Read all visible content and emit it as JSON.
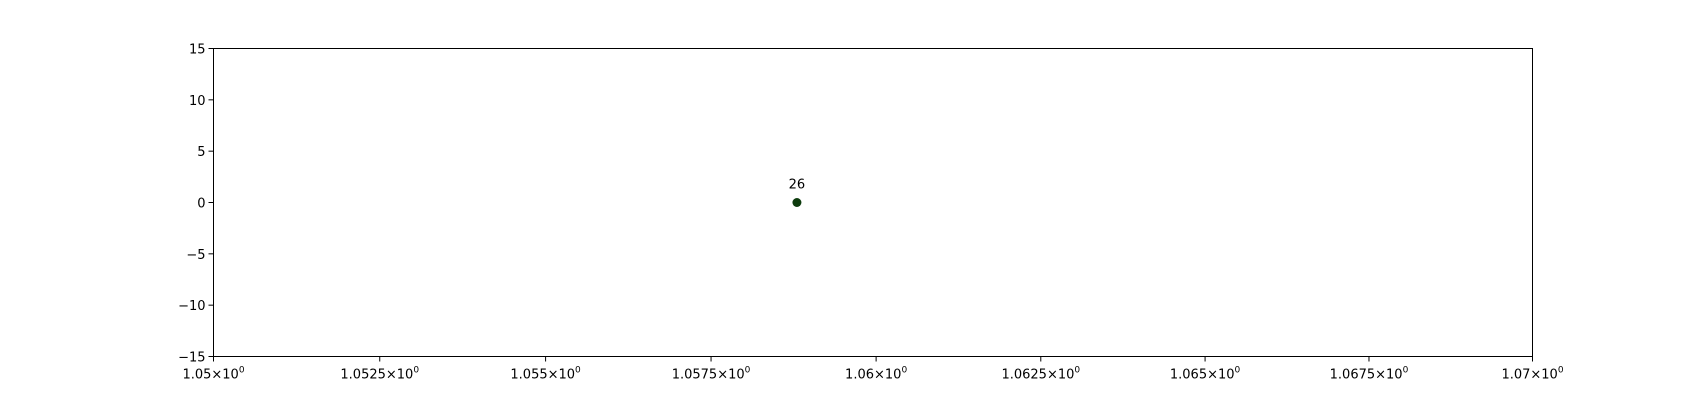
{
  "chart_data": {
    "type": "scatter",
    "title": "",
    "xlabel": "",
    "ylabel": "",
    "x_scale": "log",
    "xlim": [
      1.05,
      1.07
    ],
    "ylim": [
      -15,
      15
    ],
    "grid": false,
    "legend": "none",
    "x_ticks": [
      {
        "value": 1.05,
        "mantissa": "1.05"
      },
      {
        "value": 1.0525,
        "mantissa": "1.0525"
      },
      {
        "value": 1.055,
        "mantissa": "1.055"
      },
      {
        "value": 1.0575,
        "mantissa": "1.0575"
      },
      {
        "value": 1.06,
        "mantissa": "1.06"
      },
      {
        "value": 1.0625,
        "mantissa": "1.0625"
      },
      {
        "value": 1.065,
        "mantissa": "1.065"
      },
      {
        "value": 1.0675,
        "mantissa": "1.0675"
      },
      {
        "value": 1.07,
        "mantissa": "1.07"
      }
    ],
    "x_tick_base": "10",
    "x_tick_exponent": "0",
    "x_tick_times": "×",
    "y_ticks": [
      {
        "value": 15,
        "label": "15"
      },
      {
        "value": 10,
        "label": "10"
      },
      {
        "value": 5,
        "label": "5"
      },
      {
        "value": 0,
        "label": "0"
      },
      {
        "value": -5,
        "label": "−5"
      },
      {
        "value": -10,
        "label": "−10"
      },
      {
        "value": -15,
        "label": "−15"
      }
    ],
    "points": [
      {
        "x": 1.0588,
        "y": 0,
        "label": "26",
        "color": "#0d3b0d"
      }
    ]
  }
}
